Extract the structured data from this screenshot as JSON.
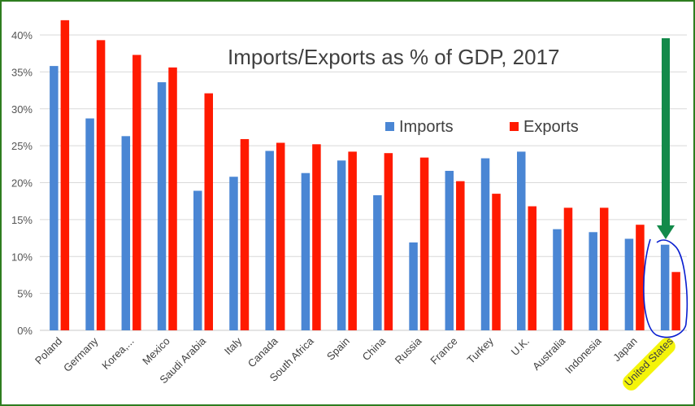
{
  "chart_data": {
    "type": "bar",
    "title": "Imports/Exports as % of GDP, 2017",
    "categories": [
      "Poland",
      "Germany",
      "Korea,...",
      "Mexico",
      "Saudi Arabia",
      "Italy",
      "Canada",
      "South Africa",
      "Spain",
      "China",
      "Russia",
      "France",
      "Turkey",
      "U.K.",
      "Australia",
      "Indonesia",
      "Japan",
      "United States"
    ],
    "series": [
      {
        "name": "Imports",
        "color": "#4a86d4",
        "values": [
          35.8,
          28.7,
          26.3,
          33.6,
          18.9,
          20.8,
          24.3,
          21.3,
          23.0,
          18.3,
          11.9,
          21.6,
          23.3,
          24.2,
          13.7,
          13.3,
          12.4,
          11.6
        ]
      },
      {
        "name": "Exports",
        "color": "#ff1a00",
        "values": [
          42.0,
          39.3,
          37.3,
          35.6,
          32.1,
          25.9,
          25.4,
          25.2,
          24.2,
          24.0,
          23.4,
          20.2,
          18.5,
          16.8,
          16.6,
          16.6,
          14.3,
          7.9
        ]
      }
    ],
    "ylim": [
      0,
      40
    ],
    "yticks": [
      "0%",
      "5%",
      "10%",
      "15%",
      "20%",
      "25%",
      "30%",
      "35%",
      "40%"
    ],
    "ytick_values": [
      0,
      5,
      10,
      15,
      20,
      25,
      30,
      35,
      40
    ],
    "grid": true,
    "legend_position": "center-right",
    "annotations": {
      "arrow_color": "#138a4a",
      "circle_color": "#0a1fd0",
      "highlight_color": "#f4f40a",
      "highlighted_category": "United States"
    }
  }
}
